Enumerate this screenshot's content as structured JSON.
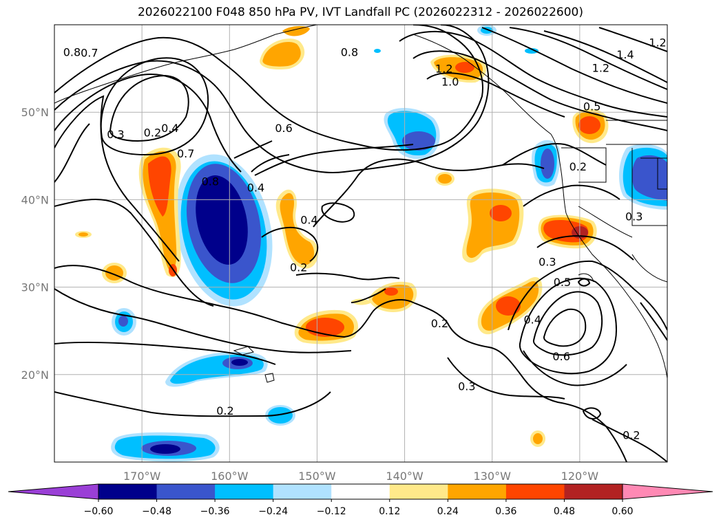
{
  "title": "2026022100 F048 850 hPa PV, IVT Landfall PC (2026022312 - 2026022600)",
  "map": {
    "lon_range": [
      -180,
      -110
    ],
    "lat_range": [
      10,
      60
    ],
    "lat_ticks": [
      {
        "value": 50,
        "label": "50°N"
      },
      {
        "value": 40,
        "label": "40°N"
      },
      {
        "value": 30,
        "label": "30°N"
      },
      {
        "value": 20,
        "label": "20°N"
      }
    ],
    "lon_ticks": [
      {
        "value": -170,
        "label": "170°W"
      },
      {
        "value": -160,
        "label": "160°W"
      },
      {
        "value": -150,
        "label": "150°W"
      },
      {
        "value": -140,
        "label": "140°W"
      },
      {
        "value": -130,
        "label": "130°W"
      },
      {
        "value": -120,
        "label": "120°W"
      }
    ],
    "contour_labels": [
      {
        "text": "0.8",
        "lon": -178,
        "lat": 56.9
      },
      {
        "text": "0.7",
        "lon": -176,
        "lat": 56.8
      },
      {
        "text": "0.2",
        "lon": -168.8,
        "lat": 47.7
      },
      {
        "text": "0.3",
        "lon": -173,
        "lat": 47.5
      },
      {
        "text": "0.4",
        "lon": -166.8,
        "lat": 48.2
      },
      {
        "text": "0.7",
        "lon": -165,
        "lat": 45.3
      },
      {
        "text": "0.8",
        "lon": -162.2,
        "lat": 42.1
      },
      {
        "text": "0.4",
        "lon": -157,
        "lat": 41.4
      },
      {
        "text": "0.6",
        "lon": -153.8,
        "lat": 48.2
      },
      {
        "text": "0.4",
        "lon": -150.9,
        "lat": 37.7
      },
      {
        "text": "0.2",
        "lon": -152.1,
        "lat": 32.3
      },
      {
        "text": "0.8",
        "lon": -146.3,
        "lat": 56.9
      },
      {
        "text": "1.2",
        "lon": -135.5,
        "lat": 55.0
      },
      {
        "text": "1.0",
        "lon": -134.8,
        "lat": 53.5
      },
      {
        "text": "1.2",
        "lon": -117.6,
        "lat": 55.1
      },
      {
        "text": "1.4",
        "lon": -114.8,
        "lat": 56.6
      },
      {
        "text": "1.2",
        "lon": -111.1,
        "lat": 58.0
      },
      {
        "text": "0.5",
        "lon": -118.6,
        "lat": 50.7
      },
      {
        "text": "0.2",
        "lon": -120.2,
        "lat": 43.8
      },
      {
        "text": "0.3",
        "lon": -123.7,
        "lat": 32.9
      },
      {
        "text": "0.5",
        "lon": -122.0,
        "lat": 30.6
      },
      {
        "text": "0.3",
        "lon": -113.8,
        "lat": 38.1
      },
      {
        "text": "0.4",
        "lon": -125.4,
        "lat": 26.3
      },
      {
        "text": "0.6",
        "lon": -122.1,
        "lat": 22.1
      },
      {
        "text": "0.2",
        "lon": -136.0,
        "lat": 25.9
      },
      {
        "text": "0.3",
        "lon": -132.9,
        "lat": 18.7
      },
      {
        "text": "0.2",
        "lon": -160.5,
        "lat": 15.9
      },
      {
        "text": "0.2",
        "lon": -114.1,
        "lat": 13.1
      }
    ]
  },
  "colorbar": {
    "colors": [
      "#9a3fd6",
      "#00008b",
      "#3a55cc",
      "#00bfff",
      "#b0e2ff",
      "#ffffff",
      "#ffe98a",
      "#ffa500",
      "#ff4500",
      "#b22222",
      "#ff89b4"
    ],
    "tick_labels": [
      "−0.60",
      "−0.48",
      "−0.36",
      "−0.24",
      "−0.12",
      "0.12",
      "0.24",
      "0.36",
      "0.48",
      "0.60"
    ]
  },
  "levels": [
    -0.6,
    -0.48,
    -0.36,
    -0.24,
    -0.12,
    0.12,
    0.24,
    0.36,
    0.48,
    0.6
  ]
}
